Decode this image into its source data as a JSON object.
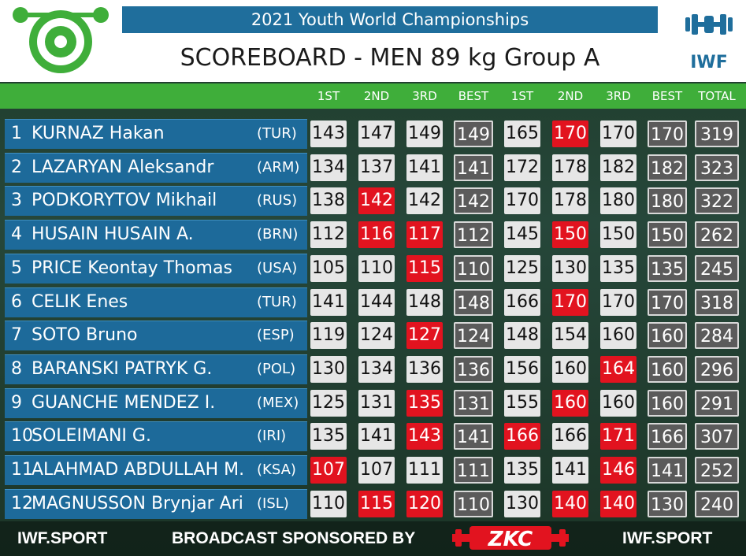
{
  "header": {
    "event_title": "2021 Youth World Championships",
    "scoreboard_title": "SCOREBOARD - MEN 89 kg Group A",
    "right_logo_text": "IWF"
  },
  "columns": {
    "snatch_1": "1ST",
    "snatch_2": "2ND",
    "snatch_3": "3RD",
    "snatch_best": "BEST",
    "cj_1": "1ST",
    "cj_2": "2ND",
    "cj_3": "3RD",
    "cj_best": "BEST",
    "total": "TOTAL"
  },
  "colors": {
    "name_bar": "#1d6a9a",
    "header_green": "#3fae3a",
    "good_lift": "#e6e6e6",
    "no_lift": "#e2131f",
    "best_cell": "#5b5b5b"
  },
  "athletes": [
    {
      "rank": "1",
      "name": "KURNAZ Hakan",
      "nation": "(TUR)",
      "lifts": [
        [
          "143",
          "good"
        ],
        [
          "147",
          "good"
        ],
        [
          "149",
          "good"
        ],
        [
          "149",
          "best"
        ],
        [
          "165",
          "good"
        ],
        [
          "170",
          "fail"
        ],
        [
          "170",
          "good"
        ],
        [
          "170",
          "best"
        ],
        [
          "319",
          "total"
        ]
      ]
    },
    {
      "rank": "2",
      "name": "LAZARYAN Aleksandr",
      "nation": "(ARM)",
      "lifts": [
        [
          "134",
          "good"
        ],
        [
          "137",
          "good"
        ],
        [
          "141",
          "good"
        ],
        [
          "141",
          "best"
        ],
        [
          "172",
          "good"
        ],
        [
          "178",
          "good"
        ],
        [
          "182",
          "good"
        ],
        [
          "182",
          "best"
        ],
        [
          "323",
          "total"
        ]
      ]
    },
    {
      "rank": "3",
      "name": "PODKORYTOV Mikhail",
      "nation": "(RUS)",
      "lifts": [
        [
          "138",
          "good"
        ],
        [
          "142",
          "fail"
        ],
        [
          "142",
          "good"
        ],
        [
          "142",
          "best"
        ],
        [
          "170",
          "good"
        ],
        [
          "178",
          "good"
        ],
        [
          "180",
          "good"
        ],
        [
          "180",
          "best"
        ],
        [
          "322",
          "total"
        ]
      ]
    },
    {
      "rank": "4",
      "name": "HUSAIN HUSAIN A.",
      "nation": "(BRN)",
      "lifts": [
        [
          "112",
          "good"
        ],
        [
          "116",
          "fail"
        ],
        [
          "117",
          "fail"
        ],
        [
          "112",
          "best"
        ],
        [
          "145",
          "good"
        ],
        [
          "150",
          "fail"
        ],
        [
          "150",
          "good"
        ],
        [
          "150",
          "best"
        ],
        [
          "262",
          "total"
        ]
      ]
    },
    {
      "rank": "5",
      "name": "PRICE Keontay Thomas",
      "nation": "(USA)",
      "lifts": [
        [
          "105",
          "good"
        ],
        [
          "110",
          "good"
        ],
        [
          "115",
          "fail"
        ],
        [
          "110",
          "best"
        ],
        [
          "125",
          "good"
        ],
        [
          "130",
          "good"
        ],
        [
          "135",
          "good"
        ],
        [
          "135",
          "best"
        ],
        [
          "245",
          "total"
        ]
      ]
    },
    {
      "rank": "6",
      "name": "CELIK Enes",
      "nation": "(TUR)",
      "lifts": [
        [
          "141",
          "good"
        ],
        [
          "144",
          "good"
        ],
        [
          "148",
          "good"
        ],
        [
          "148",
          "best"
        ],
        [
          "166",
          "good"
        ],
        [
          "170",
          "fail"
        ],
        [
          "170",
          "good"
        ],
        [
          "170",
          "best"
        ],
        [
          "318",
          "total"
        ]
      ]
    },
    {
      "rank": "7",
      "name": "SOTO Bruno",
      "nation": "(ESP)",
      "lifts": [
        [
          "119",
          "good"
        ],
        [
          "124",
          "good"
        ],
        [
          "127",
          "fail"
        ],
        [
          "124",
          "best"
        ],
        [
          "148",
          "good"
        ],
        [
          "154",
          "good"
        ],
        [
          "160",
          "good"
        ],
        [
          "160",
          "best"
        ],
        [
          "284",
          "total"
        ]
      ]
    },
    {
      "rank": "8",
      "name": "BARANSKI PATRYK G.",
      "nation": "(POL)",
      "lifts": [
        [
          "130",
          "good"
        ],
        [
          "134",
          "good"
        ],
        [
          "136",
          "good"
        ],
        [
          "136",
          "best"
        ],
        [
          "156",
          "good"
        ],
        [
          "160",
          "good"
        ],
        [
          "164",
          "fail"
        ],
        [
          "160",
          "best"
        ],
        [
          "296",
          "total"
        ]
      ]
    },
    {
      "rank": "9",
      "name": "GUANCHE MENDEZ I.",
      "nation": "(MEX)",
      "lifts": [
        [
          "125",
          "good"
        ],
        [
          "131",
          "good"
        ],
        [
          "135",
          "fail"
        ],
        [
          "131",
          "best"
        ],
        [
          "155",
          "good"
        ],
        [
          "160",
          "fail"
        ],
        [
          "160",
          "good"
        ],
        [
          "160",
          "best"
        ],
        [
          "291",
          "total"
        ]
      ]
    },
    {
      "rank": "10",
      "name": "SOLEIMANI G.",
      "nation": "(IRI)",
      "lifts": [
        [
          "135",
          "good"
        ],
        [
          "141",
          "good"
        ],
        [
          "143",
          "fail"
        ],
        [
          "141",
          "best"
        ],
        [
          "166",
          "fail"
        ],
        [
          "166",
          "good"
        ],
        [
          "171",
          "fail"
        ],
        [
          "166",
          "best"
        ],
        [
          "307",
          "total"
        ]
      ]
    },
    {
      "rank": "11",
      "name": "ALAHMAD ABDULLAH M.",
      "nation": "(KSA)",
      "lifts": [
        [
          "107",
          "fail"
        ],
        [
          "107",
          "good"
        ],
        [
          "111",
          "good"
        ],
        [
          "111",
          "best"
        ],
        [
          "135",
          "good"
        ],
        [
          "141",
          "good"
        ],
        [
          "146",
          "fail"
        ],
        [
          "141",
          "best"
        ],
        [
          "252",
          "total"
        ]
      ]
    },
    {
      "rank": "12",
      "name": "MAGNUSSON Brynjar Ari",
      "nation": "(ISL)",
      "lifts": [
        [
          "110",
          "good"
        ],
        [
          "115",
          "fail"
        ],
        [
          "120",
          "fail"
        ],
        [
          "110",
          "best"
        ],
        [
          "130",
          "good"
        ],
        [
          "140",
          "fail"
        ],
        [
          "140",
          "fail"
        ],
        [
          "130",
          "best"
        ],
        [
          "240",
          "total"
        ]
      ]
    }
  ],
  "footer": {
    "left": "IWF.SPORT",
    "center": "BROADCAST SPONSORED BY",
    "sponsor": "ZKC",
    "right": "IWF.SPORT"
  }
}
